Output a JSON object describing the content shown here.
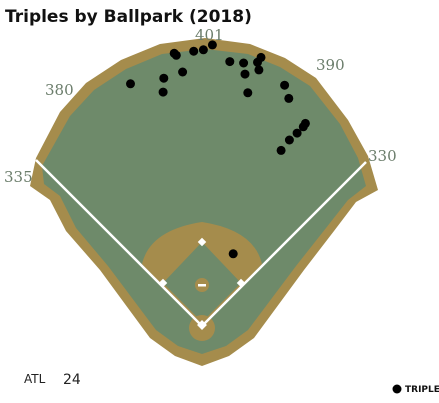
{
  "chart_data": {
    "type": "scatter",
    "title": "Triples by Ballpark (2018)",
    "team": "ATL",
    "count": "24",
    "fence_distances": [
      "335",
      "380",
      "401",
      "390",
      "330"
    ],
    "legend": "TRIPLE",
    "units": "feet",
    "colors": {
      "outfield": "#6e8a6a",
      "warning_track": "#a58c4c",
      "infield_dirt": "#a58c4c",
      "foul_line": "#ffffff",
      "dot": "#000000",
      "distance_label": "#6b7d6b"
    },
    "points": [
      {
        "x": 15,
        "y": 405
      },
      {
        "x": 2,
        "y": 398
      },
      {
        "x": -12,
        "y": 396
      },
      {
        "x": -40,
        "y": 393
      },
      {
        "x": -37,
        "y": 390
      },
      {
        "x": 40,
        "y": 381
      },
      {
        "x": 60,
        "y": 379
      },
      {
        "x": 80,
        "y": 380
      },
      {
        "x": 85,
        "y": 387
      },
      {
        "x": -28,
        "y": 366
      },
      {
        "x": -55,
        "y": 357
      },
      {
        "x": 62,
        "y": 363
      },
      {
        "x": 82,
        "y": 369
      },
      {
        "x": -103,
        "y": 349
      },
      {
        "x": -56,
        "y": 337
      },
      {
        "x": 119,
        "y": 347
      },
      {
        "x": 66,
        "y": 336
      },
      {
        "x": 125,
        "y": 328
      },
      {
        "x": 149,
        "y": 292
      },
      {
        "x": 146,
        "y": 287
      },
      {
        "x": 137,
        "y": 278
      },
      {
        "x": 126,
        "y": 268
      },
      {
        "x": 114,
        "y": 253
      },
      {
        "x": 45,
        "y": 104
      }
    ]
  }
}
